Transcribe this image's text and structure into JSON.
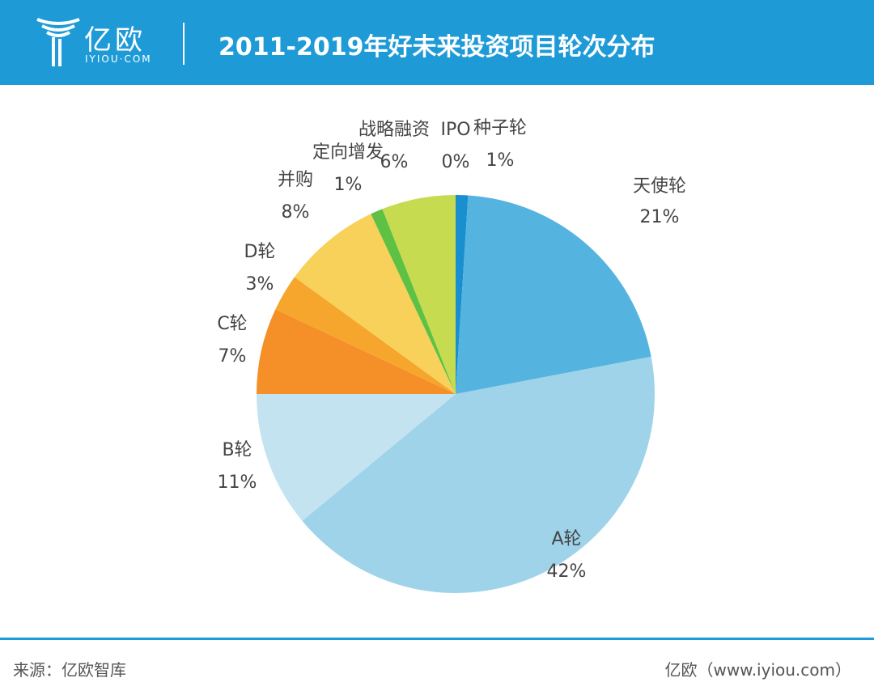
{
  "header": {
    "logo_text": "亿欧",
    "logo_sub": "IYIOU·COM",
    "title": "2011-2019年好未来投资项目轮次分布",
    "background_color": "#1e9bd7"
  },
  "chart_data": {
    "type": "pie",
    "title": "2011-2019年好未来投资项目轮次分布",
    "slices": [
      {
        "label": "种子轮",
        "value": 1,
        "value_label": "1%",
        "color": "#1a8fd0"
      },
      {
        "label": "天使轮",
        "value": 21,
        "value_label": "21%",
        "color": "#55b4df"
      },
      {
        "label": "A轮",
        "value": 42,
        "value_label": "42%",
        "color": "#9ed3ea"
      },
      {
        "label": "B轮",
        "value": 11,
        "value_label": "11%",
        "color": "#c3e3f0"
      },
      {
        "label": "C轮",
        "value": 7,
        "value_label": "7%",
        "color": "#f58f27"
      },
      {
        "label": "D轮",
        "value": 3,
        "value_label": "3%",
        "color": "#f6a62d"
      },
      {
        "label": "并购",
        "value": 8,
        "value_label": "8%",
        "color": "#f8d15a"
      },
      {
        "label": "定向增发",
        "value": 1,
        "value_label": "1%",
        "color": "#5fc143"
      },
      {
        "label": "战略融资",
        "value": 6,
        "value_label": "6%",
        "color": "#c6db4f"
      },
      {
        "label": "IPO",
        "value": 0,
        "value_label": "0%",
        "color": "#1a8fd0"
      }
    ],
    "start": "12 o'clock, clockwise"
  },
  "footer": {
    "source": "来源：亿欧智库",
    "credit": "亿欧（www.iyiou.com）",
    "line_color": "#1e9bd7"
  }
}
